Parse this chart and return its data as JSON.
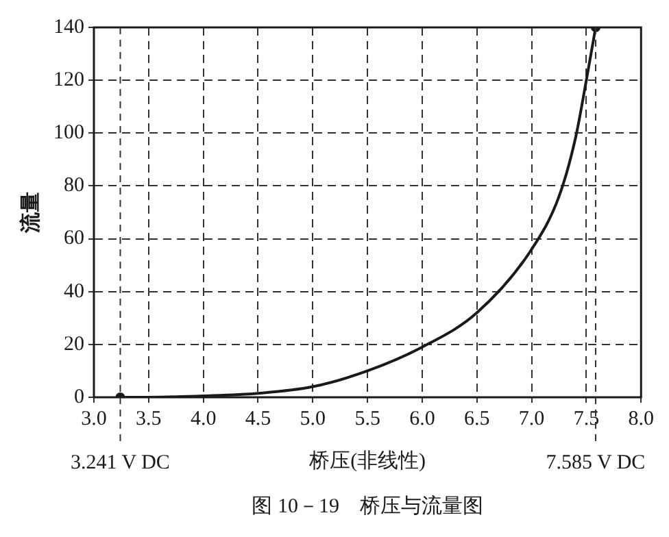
{
  "chart_data": {
    "type": "line",
    "xlabel": "桥压(非线性)",
    "ylabel": "流量",
    "x": [
      3.241,
      3.5,
      4.0,
      4.5,
      5.0,
      5.5,
      6.0,
      6.5,
      7.0,
      7.25,
      7.4,
      7.5,
      7.585
    ],
    "series": [
      {
        "color": "#1a1a1a",
        "values": [
          0,
          0,
          0.5,
          1.5,
          4,
          10,
          19,
          32,
          56,
          76,
          98,
          120,
          140
        ],
        "marker": "none"
      },
      {
        "type": "scatter",
        "color": "#1a1a1a",
        "x": [
          3.241,
          7.585
        ],
        "values": [
          0,
          140
        ],
        "marker": "circle"
      }
    ],
    "xlim": [
      3.0,
      8.0
    ],
    "xticks": [
      {
        "value": 3.0,
        "label": "3.0"
      },
      3.5,
      {
        "value": 4.0,
        "label": "4.0"
      },
      4.5,
      {
        "value": 5.0,
        "label": "5.0"
      },
      5.5,
      {
        "value": 6.0,
        "label": "6.0"
      },
      6.5,
      {
        "value": 7.0,
        "label": "7.0"
      },
      7.5,
      {
        "value": 8.0,
        "label": "8.0"
      }
    ],
    "ylim": [
      0,
      140
    ],
    "yticks": [
      0,
      20,
      40,
      60,
      80,
      100,
      120,
      140
    ],
    "grid": true,
    "line_style": "solid",
    "ref_lines": [
      {
        "axis": "x",
        "value": 3.241,
        "label": "3.241 V DC",
        "color": "#333333",
        "line_style": "dashed"
      },
      {
        "axis": "x",
        "value": 7.585,
        "label": "7.585 V DC",
        "color": "#333333",
        "line_style": "dashed"
      }
    ],
    "annotations": [
      "图 10－19　桥压与流量图"
    ]
  }
}
